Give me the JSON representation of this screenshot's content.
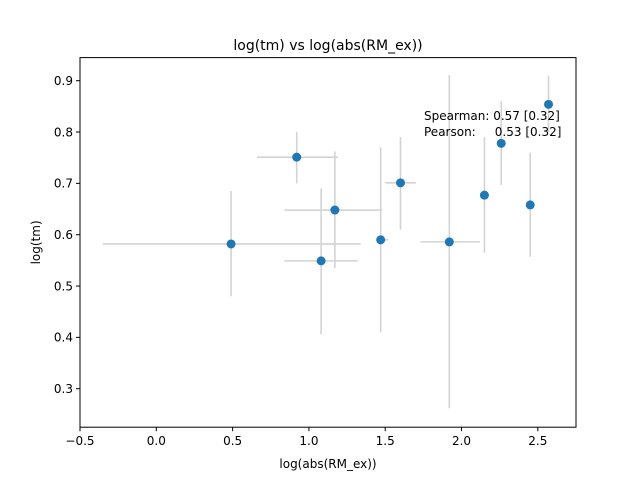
{
  "chart_data": {
    "type": "scatter",
    "title": "log(tm) vs log(abs(RM_ex))",
    "xlabel": "log(abs(RM_ex))",
    "ylabel": "log(tm)",
    "xlim": [
      -0.5,
      2.75
    ],
    "ylim": [
      0.225,
      0.945
    ],
    "xticks": [
      -0.5,
      0.0,
      0.5,
      1.0,
      1.5,
      2.0,
      2.5
    ],
    "xtick_labels": [
      "−0.5",
      "0.0",
      "0.5",
      "1.0",
      "1.5",
      "2.0",
      "2.5"
    ],
    "yticks": [
      0.3,
      0.4,
      0.5,
      0.6,
      0.7,
      0.8,
      0.9
    ],
    "ytick_labels": [
      "0.3",
      "0.4",
      "0.5",
      "0.6",
      "0.7",
      "0.8",
      "0.9"
    ],
    "grid": false,
    "marker_color": "#1f77b4",
    "errorbar_color": "#d3d3d3",
    "points": [
      {
        "x": 0.49,
        "y": 0.582,
        "xerr_lo": -0.35,
        "xerr_hi": 1.34,
        "yerr_lo": 0.48,
        "yerr_hi": 0.685
      },
      {
        "x": 0.92,
        "y": 0.751,
        "xerr_lo": 0.66,
        "xerr_hi": 1.19,
        "yerr_lo": 0.7,
        "yerr_hi": 0.8
      },
      {
        "x": 1.08,
        "y": 0.549,
        "xerr_lo": 0.84,
        "xerr_hi": 1.32,
        "yerr_lo": 0.406,
        "yerr_hi": 0.69
      },
      {
        "x": 1.17,
        "y": 0.648,
        "xerr_lo": 0.84,
        "xerr_hi": 1.48,
        "yerr_lo": 0.535,
        "yerr_hi": 0.762
      },
      {
        "x": 1.47,
        "y": 0.59,
        "xerr_lo": 1.46,
        "xerr_hi": 1.52,
        "yerr_lo": 0.41,
        "yerr_hi": 0.77
      },
      {
        "x": 1.6,
        "y": 0.701,
        "xerr_lo": 1.5,
        "xerr_hi": 1.7,
        "yerr_lo": 0.61,
        "yerr_hi": 0.79
      },
      {
        "x": 1.92,
        "y": 0.586,
        "xerr_lo": 1.73,
        "xerr_hi": 2.12,
        "yerr_lo": 0.262,
        "yerr_hi": 0.911
      },
      {
        "x": 2.15,
        "y": 0.677,
        "xerr_lo": 2.14,
        "xerr_hi": 2.16,
        "yerr_lo": 0.565,
        "yerr_hi": 0.79
      },
      {
        "x": 2.26,
        "y": 0.778,
        "xerr_lo": 2.25,
        "xerr_hi": 2.27,
        "yerr_lo": 0.697,
        "yerr_hi": 0.86
      },
      {
        "x": 2.45,
        "y": 0.658,
        "xerr_lo": 2.44,
        "xerr_hi": 2.46,
        "yerr_lo": 0.557,
        "yerr_hi": 0.76
      },
      {
        "x": 2.57,
        "y": 0.854,
        "xerr_lo": 2.56,
        "xerr_hi": 2.58,
        "yerr_lo": 0.8,
        "yerr_hi": 0.91
      }
    ],
    "annotations": [
      "Spearman: 0.57 [0.32]",
      "Pearson:     0.53 [0.32]"
    ]
  }
}
